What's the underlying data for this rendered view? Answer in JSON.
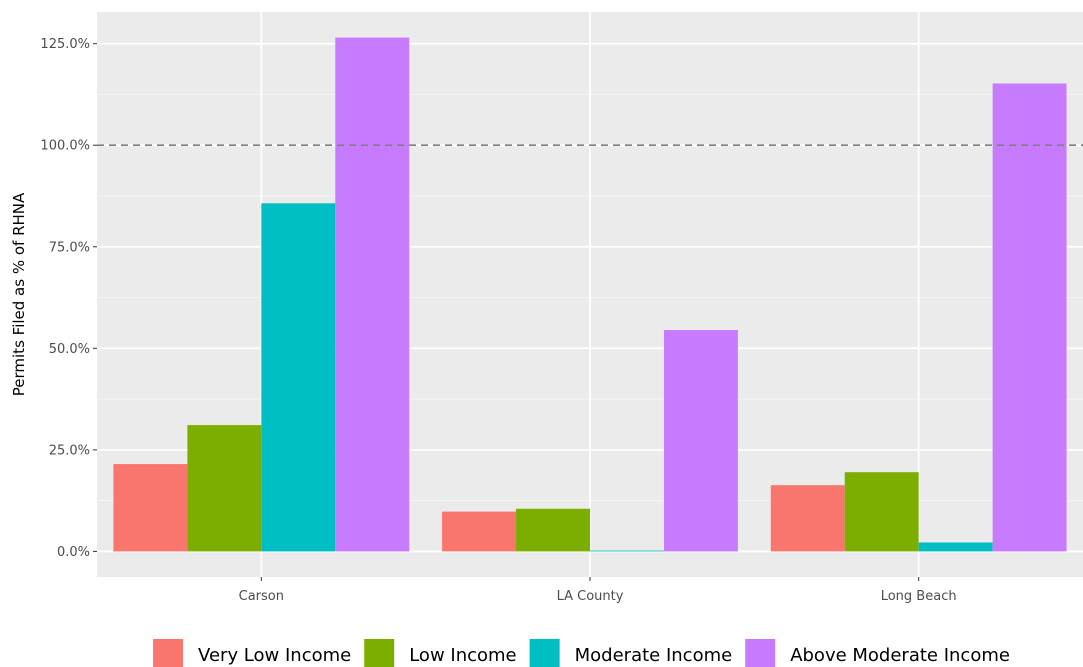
{
  "chart_data": {
    "type": "bar",
    "title": "",
    "xlabel": "",
    "ylabel": "Permits Filed as % of RHNA",
    "categories": [
      "Carson",
      "LA County",
      "Long Beach"
    ],
    "series": [
      {
        "name": "Very Low Income",
        "color": "#F8766D",
        "values": [
          21.5,
          9.8,
          16.3
        ]
      },
      {
        "name": "Low Income",
        "color": "#7CAE00",
        "values": [
          31.1,
          10.5,
          19.5
        ]
      },
      {
        "name": "Moderate Income",
        "color": "#00BFC4",
        "values": [
          85.7,
          0.2,
          2.2
        ]
      },
      {
        "name": "Above Moderate Income",
        "color": "#C77CFF",
        "values": [
          126.5,
          54.5,
          115.2
        ]
      }
    ],
    "yticks": [
      0,
      25,
      50,
      75,
      100,
      125
    ],
    "ytick_labels": [
      "0.0%",
      "25.0%",
      "50.0%",
      "75.0%",
      "100.0%",
      "125.0%"
    ],
    "ylim": [
      -6.3,
      132.8
    ],
    "reference_line": {
      "value": 100,
      "style": "dashed"
    },
    "grid": true,
    "legend_position": "bottom"
  }
}
